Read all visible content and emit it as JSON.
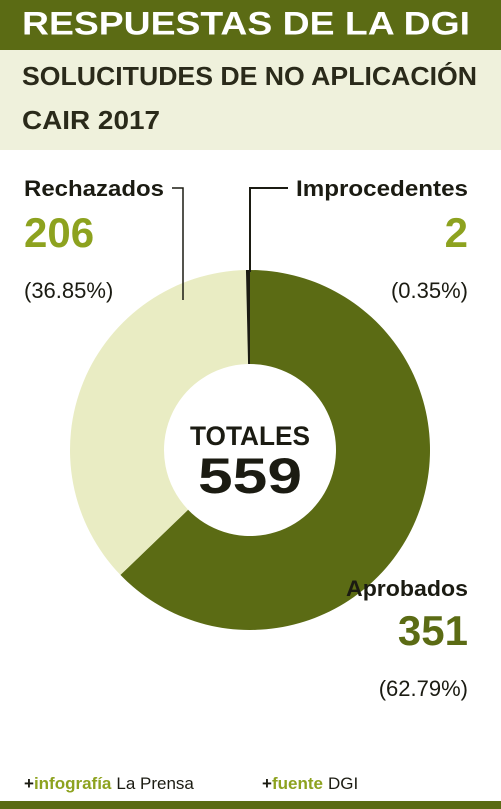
{
  "chart_data": {
    "type": "donut",
    "title": "RESPUESTAS DE LA DGI",
    "subtitle_lines": [
      "SOLUCITUDES DE NO APLICACIÓN",
      "CAIR 2017"
    ],
    "categories": [
      "Aprobados",
      "Rechazados",
      "Improcedentes"
    ],
    "values": [
      351,
      206,
      2
    ],
    "colors": [
      "#5b6b14",
      "#e9ecc3",
      "#1b1b12"
    ],
    "percent_values": [
      62.79,
      36.85,
      0.35
    ],
    "percent_labels": [
      "(62.79%)",
      "(36.85%)",
      "(0.35%)"
    ],
    "center_label": "TOTALES",
    "total": 559,
    "credits": [
      {
        "marker": "+",
        "label": "infografía",
        "value": "La Prensa"
      },
      {
        "marker": "+",
        "label": "fuente",
        "value": "DGI"
      }
    ]
  }
}
